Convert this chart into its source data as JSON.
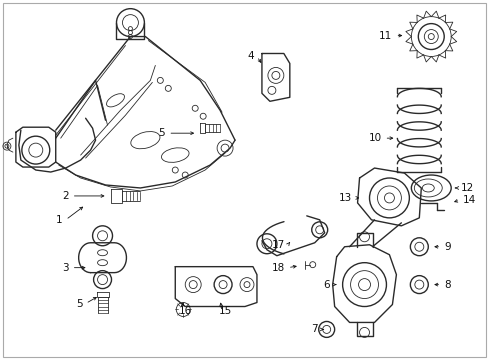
{
  "background_color": "#ffffff",
  "border_color": "#aaaaaa",
  "figsize": [
    4.89,
    3.6
  ],
  "dpi": 100,
  "line_color": "#2a2a2a",
  "text_color": "#111111",
  "arrow_color": "#111111",
  "font_size": 7.5,
  "lw_main": 1.0,
  "lw_thin": 0.6
}
